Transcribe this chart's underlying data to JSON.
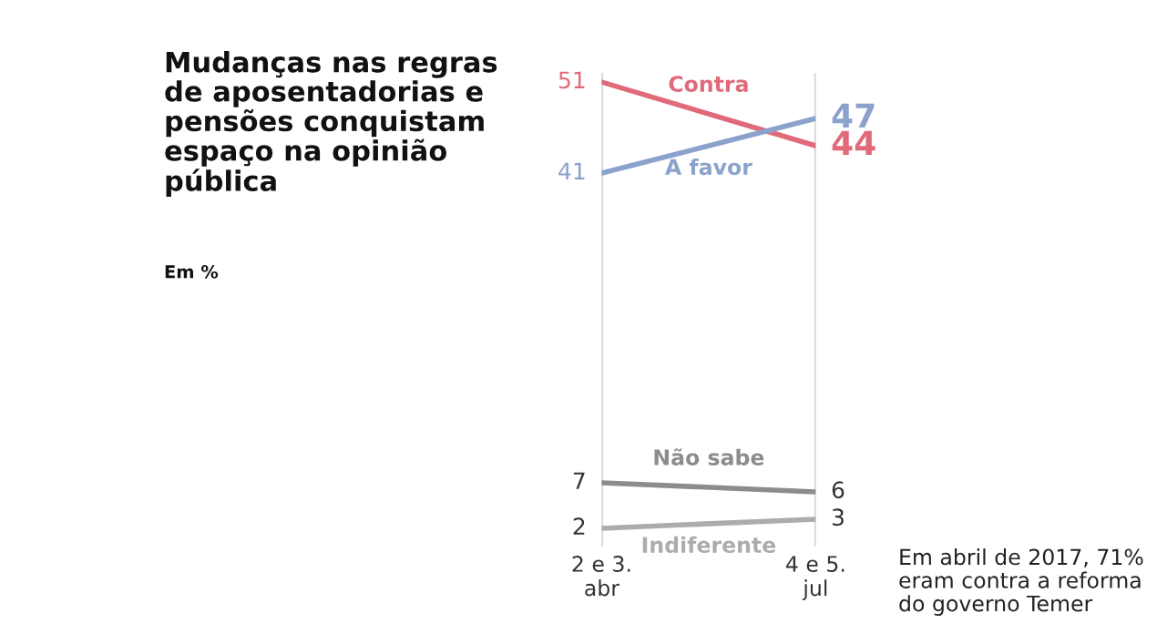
{
  "chart_data": {
    "type": "line",
    "title": "Mudanças nas regras\nde aposentadorias e\npensões conquistam\nespaço na opinião\npública",
    "categories": [
      "2 e 3.\nabr",
      "4 e 5.\njul"
    ],
    "series": [
      {
        "name": "Contra",
        "color": "#e06a7a",
        "values": [
          51,
          44
        ]
      },
      {
        "name": "A favor",
        "color": "#8aa2cc",
        "values": [
          41,
          47
        ]
      },
      {
        "name": "Não sabe",
        "color": "#8c8c8c",
        "values": [
          7,
          6
        ]
      },
      {
        "name": "Indiferente",
        "color": "#acacac",
        "values": [
          2,
          3
        ]
      }
    ],
    "ylim": [
      0,
      52
    ],
    "grid": "x",
    "data_labels": true,
    "legend": false,
    "marker": "none",
    "line_style": "solid",
    "annotations": [
      "Em %",
      "Em abril de 2017, 71%\neram contra a reforma\ndo governo Temer"
    ]
  }
}
